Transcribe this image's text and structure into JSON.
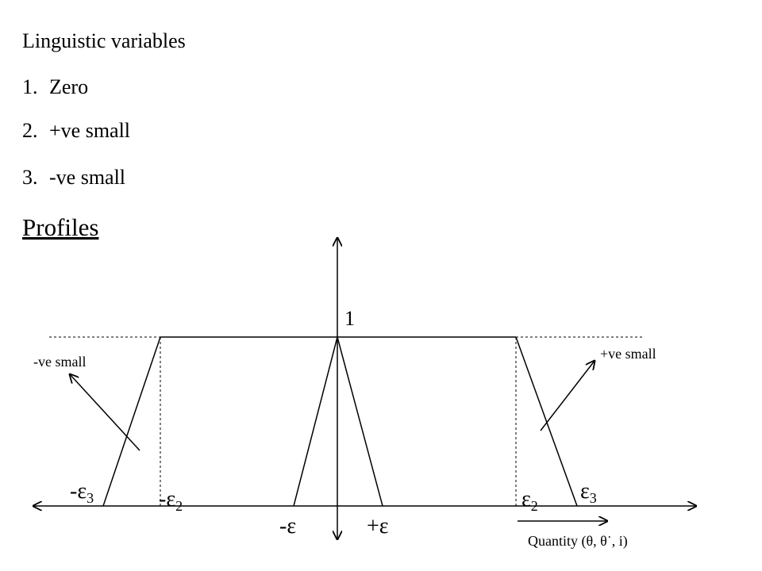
{
  "heading": "Linguistic variables",
  "list": [
    {
      "number": "1.",
      "text": "Zero"
    },
    {
      "number": "2.",
      "text": "+ve small"
    },
    {
      "number": "3.",
      "text": "-ve small"
    }
  ],
  "section_title": "Profiles",
  "diagram": {
    "peak_label": "1",
    "left_profile_label": "-ve small",
    "right_profile_label": "+ve small",
    "axis_label": "Quantity (θ, θ˙, i)",
    "points": [
      {
        "text": "-ε",
        "sub": "3"
      },
      {
        "text": "-ε",
        "sub": "2"
      },
      {
        "text": "ε",
        "sub": "2"
      },
      {
        "text": "ε",
        "sub": "3"
      },
      {
        "text": "-ε"
      },
      {
        "text": "+ε"
      }
    ]
  }
}
